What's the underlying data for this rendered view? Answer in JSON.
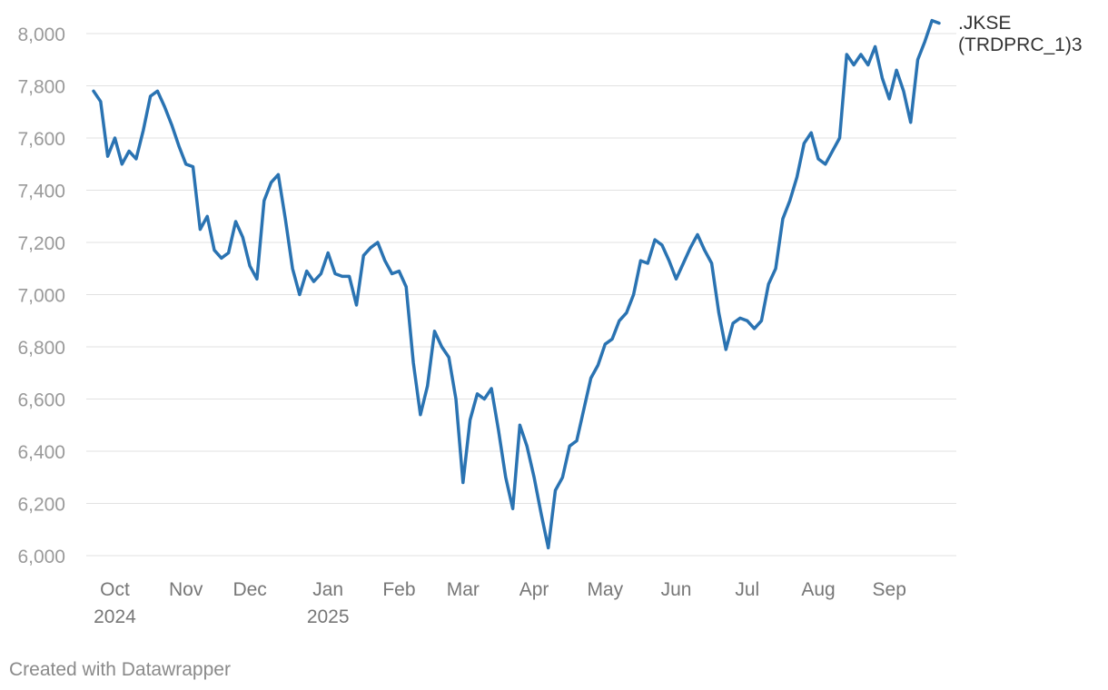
{
  "chart_data": {
    "type": "line",
    "credit": "Created with Datawrapper",
    "categories": [
      null,
      null,
      null,
      "Oct 2024",
      null,
      null,
      null,
      null,
      null,
      null,
      null,
      null,
      null,
      "Nov",
      null,
      null,
      null,
      null,
      null,
      null,
      null,
      null,
      "Dec",
      null,
      null,
      null,
      null,
      null,
      null,
      null,
      null,
      null,
      null,
      "Jan 2025",
      null,
      null,
      null,
      null,
      null,
      null,
      null,
      null,
      null,
      "Feb",
      null,
      null,
      null,
      null,
      null,
      null,
      null,
      null,
      "Mar",
      null,
      null,
      null,
      null,
      null,
      null,
      null,
      null,
      null,
      "Apr",
      null,
      null,
      null,
      null,
      null,
      null,
      null,
      null,
      null,
      "May",
      null,
      null,
      null,
      null,
      null,
      null,
      null,
      null,
      null,
      "Jun",
      null,
      null,
      null,
      null,
      null,
      null,
      null,
      null,
      null,
      "Jul",
      null,
      null,
      null,
      null,
      null,
      null,
      null,
      null,
      null,
      "Aug",
      null,
      null,
      null,
      null,
      null,
      null,
      null,
      null,
      null,
      "Sep",
      null,
      null,
      null,
      null,
      null,
      null,
      null
    ],
    "series": [
      {
        "name": ".JKSE (TRDPRC_1)3",
        "color": "#2a73b2",
        "values": [
          7780,
          7740,
          7530,
          7600,
          7500,
          7550,
          7520,
          7630,
          7760,
          7780,
          7720,
          7650,
          7570,
          7500,
          7490,
          7250,
          7300,
          7170,
          7140,
          7160,
          7280,
          7220,
          7110,
          7060,
          7360,
          7430,
          7460,
          7290,
          7100,
          7000,
          7090,
          7050,
          7080,
          7160,
          7080,
          7070,
          7070,
          6960,
          7150,
          7180,
          7200,
          7130,
          7080,
          7090,
          7030,
          6740,
          6540,
          6650,
          6860,
          6800,
          6760,
          6600,
          6280,
          6520,
          6620,
          6600,
          6640,
          6480,
          6300,
          6180,
          6500,
          6420,
          6300,
          6160,
          6030,
          6250,
          6300,
          6420,
          6440,
          6560,
          6680,
          6730,
          6810,
          6830,
          6900,
          6930,
          7000,
          7130,
          7120,
          7210,
          7190,
          7130,
          7060,
          7120,
          7180,
          7230,
          7170,
          7120,
          6930,
          6790,
          6890,
          6910,
          6900,
          6870,
          6900,
          7040,
          7100,
          7290,
          7360,
          7450,
          7580,
          7620,
          7520,
          7500,
          7550,
          7600,
          7920,
          7880,
          7920,
          7880,
          7950,
          7830,
          7750,
          7860,
          7780,
          7660,
          7900,
          7970,
          8050,
          8040
        ]
      }
    ],
    "ylim": [
      6000,
      8000
    ],
    "yticks": [
      {
        "value": 6000,
        "label": "6,000"
      },
      {
        "value": 6200,
        "label": "6,200"
      },
      {
        "value": 6400,
        "label": "6,400"
      },
      {
        "value": 6600,
        "label": "6,600"
      },
      {
        "value": 6800,
        "label": "6,800"
      },
      {
        "value": 7000,
        "label": "7,000"
      },
      {
        "value": 7200,
        "label": "7,200"
      },
      {
        "value": 7400,
        "label": "7,400"
      },
      {
        "value": 7600,
        "label": "7,600"
      },
      {
        "value": 7800,
        "label": "7,800"
      },
      {
        "value": 8000,
        "label": "8,000"
      }
    ],
    "grid": true
  }
}
